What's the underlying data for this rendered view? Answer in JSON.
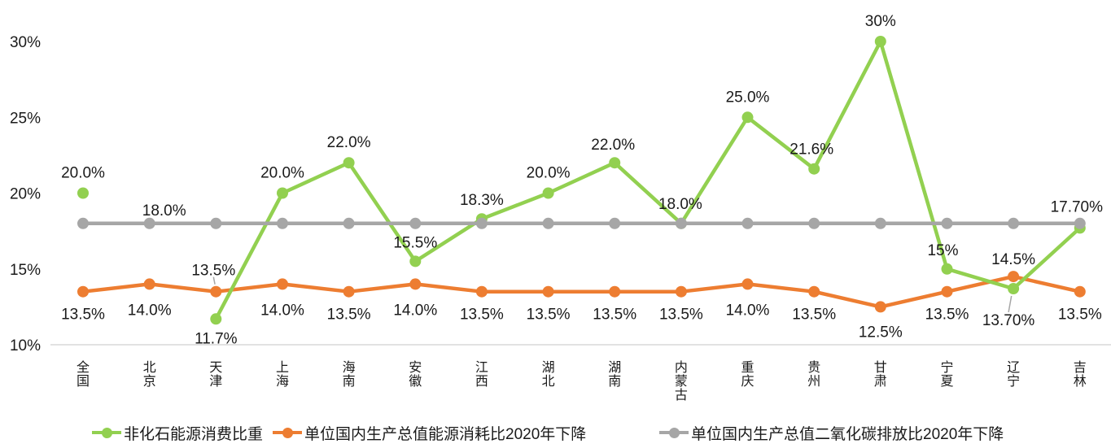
{
  "chart_data": {
    "type": "line",
    "title": "",
    "xlabel": "",
    "ylabel": "",
    "ylim": [
      10,
      30
    ],
    "yticks": [
      "10%",
      "15%",
      "20%",
      "25%",
      "30%"
    ],
    "ytick_values": [
      10,
      15,
      20,
      25,
      30
    ],
    "grid": false,
    "legend_position": "bottom",
    "categories": [
      "全国",
      "北京",
      "天津",
      "上海",
      "海南",
      "安徽",
      "江西",
      "湖北",
      "湖南",
      "内蒙古",
      "重庆",
      "贵州",
      "甘肃",
      "宁夏",
      "辽宁",
      "吉林"
    ],
    "series": [
      {
        "id": "non-fossil-energy-share",
        "name": "非化石能源消费比重",
        "color": "#92D050",
        "values": [
          20.0,
          null,
          11.7,
          20.0,
          22.0,
          15.5,
          18.3,
          20.0,
          22.0,
          18.0,
          25.0,
          21.6,
          30,
          15,
          13.7,
          17.7
        ],
        "labels": [
          "20.0%",
          null,
          "11.7%",
          "20.0%",
          "22.0%",
          "15.5%",
          "18.3%",
          "20.0%",
          "22.0%",
          "18.0%",
          "25.0%",
          "21.6%",
          "30%",
          "15%",
          "13.70%",
          "17.70%"
        ],
        "label_pos": [
          "above",
          null,
          "below,0,23",
          "above",
          "above",
          "above,0,-24",
          "above,0,-24",
          "above",
          "above,-2,-23",
          "above,-1,-25",
          "above",
          "above,-3,-25",
          "above",
          "above,-5,-24",
          "below,-6,38,L",
          "above,-4,-27"
        ]
      },
      {
        "id": "energy-intensity-decline-vs-2020",
        "name": "单位国内生产总值能源消耗比2020年下降",
        "color": "#ED7D31",
        "values": [
          13.5,
          14.0,
          13.5,
          14.0,
          13.5,
          14.0,
          13.5,
          13.5,
          13.5,
          13.5,
          14.0,
          13.5,
          12.5,
          13.5,
          14.5,
          13.5
        ],
        "labels": [
          "13.5%",
          "14.0%",
          "13.5%",
          "14.0%",
          "13.5%",
          "14.0%",
          "13.5%",
          "13.5%",
          "13.5%",
          "13.5%",
          "14.0%",
          "13.5%",
          "12.5%",
          "13.5%",
          "14.5%",
          "13.5%"
        ],
        "label_pos": [
          "below",
          "below,0,31",
          "above,-3,-27,L",
          "below,0,31",
          "below",
          "below,0,31",
          "below",
          "below",
          "below",
          "below",
          "below,0,31",
          "below",
          "below,0,30",
          "below",
          "above,0,-22",
          "below"
        ]
      },
      {
        "id": "co2-intensity-decline-vs-2020",
        "name": "单位国内生产总值二氧化碳排放比2020年下降",
        "color": "#A6A6A6",
        "values": [
          18,
          18,
          18,
          18,
          18,
          18,
          18,
          18,
          18,
          18,
          18,
          18,
          18,
          18,
          18,
          18
        ],
        "labels": [
          null,
          "18.0%",
          null,
          null,
          null,
          null,
          null,
          null,
          null,
          null,
          null,
          null,
          null,
          null,
          null,
          null
        ],
        "label_pos": [
          null,
          "above,18,-17",
          null,
          null,
          null,
          null,
          null,
          null,
          null,
          null,
          null,
          null,
          null,
          null,
          null,
          null
        ]
      }
    ]
  }
}
